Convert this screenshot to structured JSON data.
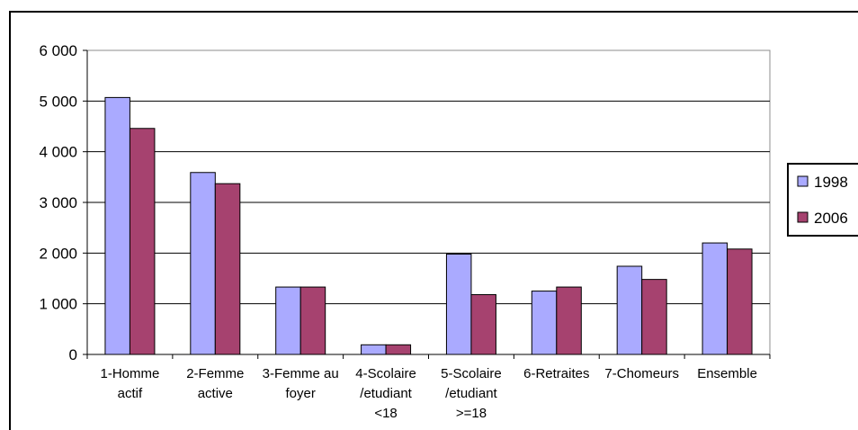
{
  "chart_data": {
    "type": "bar",
    "title": "",
    "xlabel": "",
    "ylabel": "",
    "categories": [
      [
        "1-Homme",
        "actif"
      ],
      [
        "2-Femme",
        "active"
      ],
      [
        "3-Femme au",
        "foyer"
      ],
      [
        "4-Scolaire",
        "/etudiant",
        "<18"
      ],
      [
        "5-Scolaire",
        "/etudiant",
        ">=18"
      ],
      [
        "6-Retraites"
      ],
      [
        "7-Chomeurs"
      ],
      [
        "Ensemble"
      ]
    ],
    "series": [
      {
        "name": "1998",
        "color": "#aaaaff",
        "values": [
          5070,
          3590,
          1330,
          190,
          1980,
          1250,
          1740,
          2200
        ]
      },
      {
        "name": "2006",
        "color": "#a6426f",
        "values": [
          4460,
          3370,
          1330,
          190,
          1180,
          1330,
          1480,
          2080
        ]
      }
    ],
    "ylim": [
      0,
      6000
    ],
    "yticks": [
      0,
      1000,
      2000,
      3000,
      4000,
      5000,
      6000
    ],
    "ytick_labels": [
      "0",
      "1 000",
      "2 000",
      "3 000",
      "4 000",
      "5 000",
      "6 000"
    ],
    "grid": true,
    "legend_position": "right"
  }
}
